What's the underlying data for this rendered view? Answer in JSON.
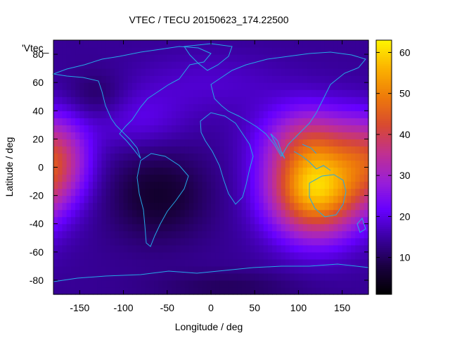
{
  "chart_data": {
    "type": "heatmap",
    "title": "VTEC / TECU 20150623_174.22500",
    "xlabel": "Longitude / deg",
    "ylabel": "Latitude / deg",
    "series_label": "'Vtec_",
    "xlim": [
      -180,
      180
    ],
    "ylim": [
      -90,
      90
    ],
    "x_ticks": [
      "-150",
      "-100",
      "-50",
      "0",
      "50",
      "100",
      "150"
    ],
    "y_ticks": [
      "80",
      "60",
      "40",
      "20",
      "0",
      "-20",
      "-40",
      "-60",
      "-80"
    ],
    "colorbar": {
      "range": [
        1,
        63
      ],
      "ticks": [
        "60",
        "50",
        "40",
        "30",
        "20",
        "10"
      ],
      "colors": [
        "#000000",
        "#1a0040",
        "#3a00a0",
        "#6600ff",
        "#9a1fd6",
        "#c03090",
        "#d84a30",
        "#ee7a0a",
        "#fbb200",
        "#fff400"
      ]
    },
    "blobs": [
      {
        "lon": 120,
        "lat": -15,
        "peak": 44,
        "slon": 38,
        "slat": 24
      },
      {
        "lon": 112,
        "lat": 22,
        "peak": 14,
        "slon": 40,
        "slat": 18
      },
      {
        "lon": -175,
        "lat": 5,
        "peak": 20,
        "slon": 26,
        "slat": 22
      },
      {
        "lon": -85,
        "lat": 35,
        "peak": 6,
        "slon": 40,
        "slat": 15
      },
      {
        "lon": 0,
        "lat": 60,
        "peak": 4,
        "slon": 60,
        "slat": 15
      }
    ],
    "holes": [
      {
        "lon": -60,
        "lat": -20,
        "depth": 8,
        "slon": 40,
        "slat": 22
      },
      {
        "lon": -130,
        "lat": 50,
        "depth": 5,
        "slon": 25,
        "slat": 12
      },
      {
        "lon": 20,
        "lat": -85,
        "depth": 4,
        "slon": 60,
        "slat": 8
      }
    ],
    "base_value": 14
  }
}
